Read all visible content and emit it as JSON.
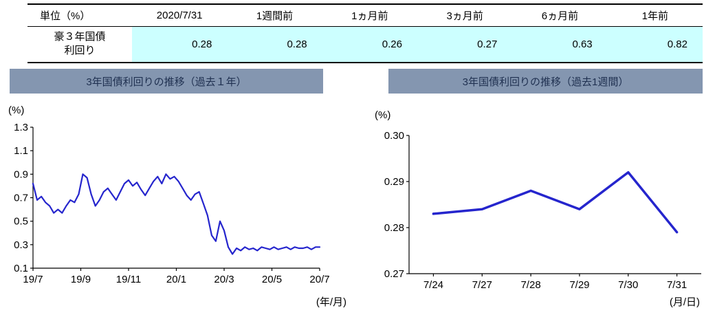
{
  "table": {
    "headers": [
      "単位（%）",
      "2020/7/31",
      "1週間前",
      "1ヵ月前",
      "3ヵ月前",
      "6ヵ月前",
      "1年前"
    ],
    "row_label": "豪３年国債\n利回り",
    "values": [
      "0.28",
      "0.28",
      "0.26",
      "0.27",
      "0.63",
      "0.82"
    ]
  },
  "colors": {
    "line": "#2525CD",
    "banner_bg": "#8496B0",
    "banner_text": "#1F3050",
    "cell_bg": "#CCFFFF",
    "axis": "#000000"
  },
  "chart_data": [
    {
      "type": "line",
      "title": "3年国債利回りの推移（過去１年）",
      "unit_label": "(%)",
      "xaxis_label": "(年/月)",
      "ylim": [
        0.1,
        1.3
      ],
      "ytick_values": [
        0.1,
        0.3,
        0.5,
        0.7,
        0.9,
        1.1,
        1.3
      ],
      "ytick_labels": [
        "0.1",
        "0.3",
        "0.5",
        "0.7",
        "0.9",
        "1.1",
        "1.3"
      ],
      "xtick_labels": [
        "19/7",
        "19/9",
        "19/11",
        "20/1",
        "20/3",
        "20/5",
        "20/7"
      ],
      "grid": false,
      "legend": false,
      "values": [
        0.82,
        0.68,
        0.71,
        0.66,
        0.63,
        0.57,
        0.6,
        0.57,
        0.63,
        0.68,
        0.66,
        0.73,
        0.9,
        0.87,
        0.73,
        0.63,
        0.68,
        0.75,
        0.78,
        0.73,
        0.68,
        0.75,
        0.82,
        0.85,
        0.8,
        0.83,
        0.77,
        0.72,
        0.78,
        0.84,
        0.88,
        0.82,
        0.9,
        0.86,
        0.88,
        0.84,
        0.78,
        0.72,
        0.68,
        0.73,
        0.75,
        0.65,
        0.55,
        0.38,
        0.33,
        0.5,
        0.42,
        0.28,
        0.22,
        0.27,
        0.25,
        0.28,
        0.26,
        0.27,
        0.25,
        0.28,
        0.27,
        0.26,
        0.28,
        0.26,
        0.27,
        0.28,
        0.26,
        0.28,
        0.27,
        0.27,
        0.28,
        0.26,
        0.28,
        0.28
      ]
    },
    {
      "type": "line",
      "title": "3年国債利回りの推移（過去1週間）",
      "unit_label": "(%)",
      "xaxis_label": "(月/日)",
      "ylim": [
        0.27,
        0.3
      ],
      "ytick_values": [
        0.27,
        0.28,
        0.29,
        0.3
      ],
      "ytick_labels": [
        "0.27",
        "0.28",
        "0.29",
        "0.30"
      ],
      "categories": [
        "7/24",
        "7/27",
        "7/28",
        "7/29",
        "7/30",
        "7/31"
      ],
      "xtick_labels": [
        "7/24",
        "7/27",
        "7/28",
        "7/29",
        "7/30",
        "7/31"
      ],
      "grid": false,
      "legend": false,
      "values": [
        0.283,
        0.284,
        0.288,
        0.284,
        0.292,
        0.279
      ]
    }
  ]
}
